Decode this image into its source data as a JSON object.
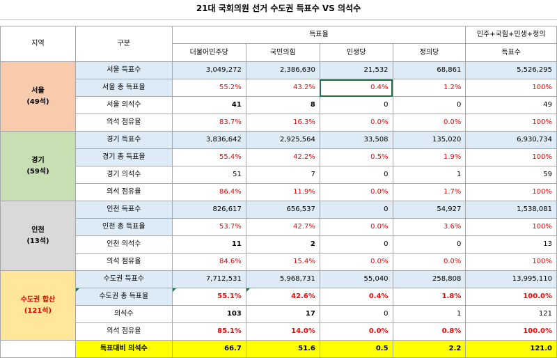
{
  "title": "21대 국회의원 선거 수도권 득표수 VS 의석수",
  "headers": {
    "region": "지역",
    "category": "구분",
    "vote_group": "득표율",
    "combined_group": "민주+국힘+민생+정의",
    "parties": [
      "더불어민주당",
      "국민의힘",
      "민생당",
      "정의당"
    ],
    "combined_sub": "득표수"
  },
  "regions": [
    {
      "name": "서울",
      "seats": "(49석)",
      "rows": [
        {
          "label": "서울 득표수",
          "values": [
            "3,049,272",
            "2,386,630",
            "21,532",
            "68,861",
            "5,526,295"
          ]
        },
        {
          "label": "서울 총 득표율",
          "values": [
            "55.2%",
            "43.2%",
            "0.4%",
            "1.2%",
            "100%"
          ]
        },
        {
          "label": "서울 의석수",
          "values": [
            "41",
            "8",
            "0",
            "0",
            "49"
          ]
        },
        {
          "label": "의석 점유율",
          "values": [
            "83.7%",
            "16.3%",
            "0.0%",
            "0.0%",
            "100%"
          ]
        }
      ]
    },
    {
      "name": "경기",
      "seats": "(59석)",
      "rows": [
        {
          "label": "경기 득표수",
          "values": [
            "3,836,642",
            "2,925,564",
            "33,508",
            "135,020",
            "6,930,734"
          ]
        },
        {
          "label": "경기 총 득표율",
          "values": [
            "55.4%",
            "42.2%",
            "0.5%",
            "1.9%",
            "100%"
          ]
        },
        {
          "label": "경기 의석수",
          "values": [
            "51",
            "7",
            "0",
            "1",
            "59"
          ]
        },
        {
          "label": "의석 점유율",
          "values": [
            "86.4%",
            "11.9%",
            "0.0%",
            "1.7%",
            "100%"
          ]
        }
      ]
    },
    {
      "name": "인천",
      "seats": "(13석)",
      "rows": [
        {
          "label": "인천 득표수",
          "values": [
            "826,617",
            "656,537",
            "0",
            "54,927",
            "1,538,081"
          ]
        },
        {
          "label": "인천 총 득표율",
          "values": [
            "53.7%",
            "42.7%",
            "0.0%",
            "3.6%",
            "100%"
          ]
        },
        {
          "label": "인천 의석수",
          "values": [
            "11",
            "2",
            "0",
            "0",
            "13"
          ]
        },
        {
          "label": "의석 점유율",
          "values": [
            "84.6%",
            "15.4%",
            "0.0%",
            "0.0%",
            "100%"
          ]
        }
      ]
    },
    {
      "name": "수도권 합산",
      "seats": "(121석)",
      "rows": [
        {
          "label": "수도권 득표수",
          "values": [
            "7,712,531",
            "5,968,731",
            "55,040",
            "258,808",
            "13,995,110"
          ]
        },
        {
          "label": "수도권 총 득표율",
          "values": [
            "55.1%",
            "42.6%",
            "0.4%",
            "1.8%",
            "100.0%"
          ]
        },
        {
          "label": "의석수",
          "values": [
            "103",
            "17",
            "0",
            "1",
            "121"
          ]
        },
        {
          "label": "의석 점유율",
          "values": [
            "85.1%",
            "14.0%",
            "0.0%",
            "0.8%",
            "100.0%"
          ]
        },
        {
          "label": "득표대비 의석수",
          "values": [
            "66.7",
            "51.6",
            "0.5",
            "2.2",
            "121.0"
          ]
        }
      ]
    }
  ]
}
